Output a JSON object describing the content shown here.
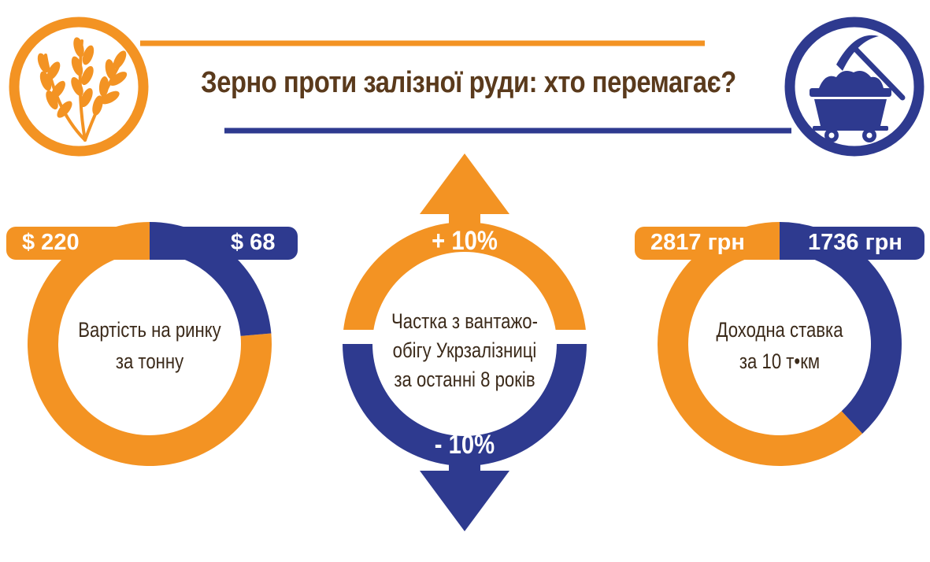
{
  "title": "Зерно проти залізної руди: хто перемагає?",
  "colors": {
    "orange": "#f39323",
    "navy": "#2e3a8f",
    "text_dark": "#3b2a1a",
    "title_brown": "#5a3a1c"
  },
  "icons": {
    "left": "wheat-icon",
    "right": "mine-cart-pickaxe-icon"
  },
  "chart_data": [
    {
      "type": "pie",
      "variant": "donut",
      "caption_lines": [
        "Вартість на ринку",
        "за тонну"
      ],
      "slices": [
        {
          "label": "$ 220",
          "value": 220,
          "color": "#f39323"
        },
        {
          "label": "$ 68",
          "value": 68,
          "color": "#2e3a8f"
        }
      ]
    },
    {
      "type": "bar",
      "variant": "up-down-arrows",
      "caption_lines": [
        "Частка з вантажо-",
        "обігу Укрзалізниці",
        "за останні 8 років"
      ],
      "items": [
        {
          "label": "+ 10%",
          "value": 10,
          "color": "#f39323"
        },
        {
          "label": "- 10%",
          "value": -10,
          "color": "#2e3a8f"
        }
      ]
    },
    {
      "type": "pie",
      "variant": "donut",
      "caption_lines": [
        "Доходна ставка",
        "за 10 т•км"
      ],
      "slices": [
        {
          "label": "2817 грн",
          "value": 2817,
          "color": "#f39323"
        },
        {
          "label": "1736 грн",
          "value": 1736,
          "color": "#2e3a8f"
        }
      ]
    }
  ]
}
